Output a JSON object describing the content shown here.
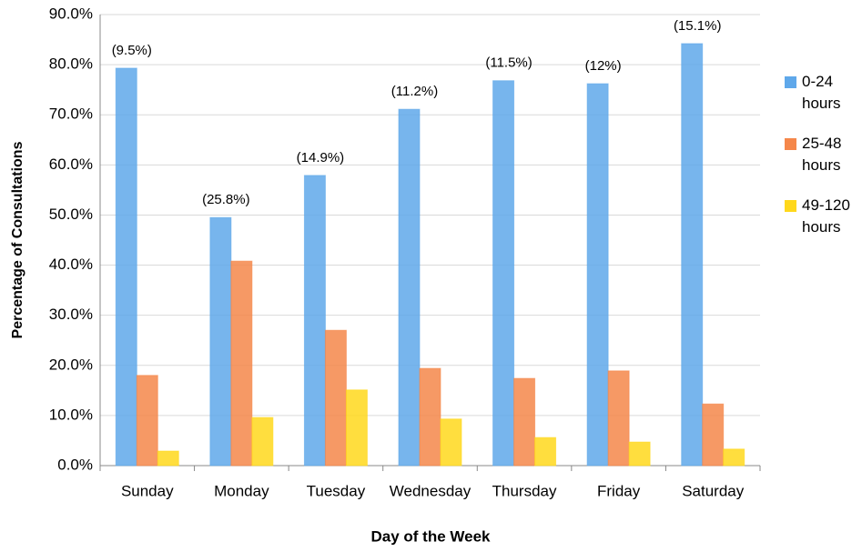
{
  "chart_data": {
    "type": "bar",
    "x_label": "Day of the Week",
    "y_label": "Percentage of Consultations",
    "categories": [
      "Sunday",
      "Monday",
      "Tuesday",
      "Wednesday",
      "Thursday",
      "Friday",
      "Saturday"
    ],
    "annotations": [
      "(9.5%)",
      "(25.8%)",
      "(14.9%)",
      "(11.2%)",
      "(11.5%)",
      "(12%)",
      "(15.1%)"
    ],
    "series": [
      {
        "name": "0-24 hours",
        "color": "#5fa8ea",
        "values": [
          79.3,
          49.5,
          57.9,
          71.1,
          76.8,
          76.2,
          84.2
        ]
      },
      {
        "name": "25-48 hours",
        "color": "#f5874a",
        "values": [
          18.0,
          40.8,
          27.0,
          19.4,
          17.4,
          18.9,
          12.3
        ]
      },
      {
        "name": "49-120 hours",
        "color": "#ffd81c",
        "values": [
          2.9,
          9.6,
          15.1,
          9.3,
          5.6,
          4.7,
          3.3
        ]
      }
    ],
    "ylim": [
      0,
      90
    ],
    "yticks": [
      {
        "value": 0,
        "label": "0.0%"
      },
      {
        "value": 10,
        "label": "10.0%"
      },
      {
        "value": 20,
        "label": "20.0%"
      },
      {
        "value": 30,
        "label": "30.0%"
      },
      {
        "value": 40,
        "label": "40.0%"
      },
      {
        "value": 50,
        "label": "50.0%"
      },
      {
        "value": 60,
        "label": "60.0%"
      },
      {
        "value": 70,
        "label": "70.0%"
      },
      {
        "value": 80,
        "label": "80.0%"
      },
      {
        "value": 90,
        "label": "90.0%"
      }
    ],
    "grid": true
  }
}
